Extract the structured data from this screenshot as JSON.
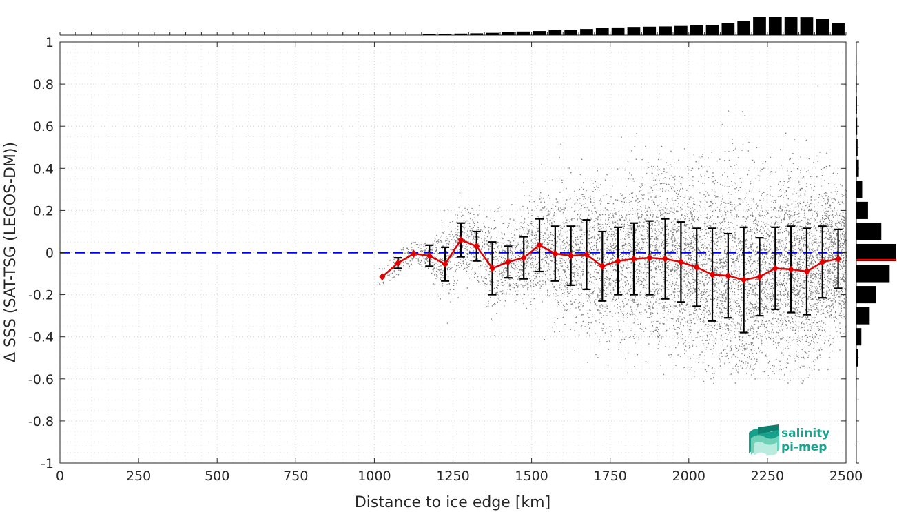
{
  "chart_data": {
    "type": "line",
    "title": "",
    "xlabel": "Distance to ice edge [km]",
    "ylabel": "Δ SSS (SAT-TSG (LEGOS-DM))",
    "xlim": [
      0,
      2500
    ],
    "ylim": [
      -1,
      1
    ],
    "xticks": [
      0,
      250,
      500,
      750,
      1000,
      1250,
      1500,
      1750,
      2000,
      2250,
      2500
    ],
    "yticks": [
      -1,
      -0.8,
      -0.6,
      -0.4,
      -0.2,
      0,
      0.2,
      0.4,
      0.6,
      0.8,
      1
    ],
    "xtick_labels": [
      "0",
      "250",
      "500",
      "750",
      "1000",
      "1250",
      "1500",
      "1750",
      "2000",
      "2250",
      "2500"
    ],
    "ytick_labels": [
      "-1",
      "-0.8",
      "-0.6",
      "-0.4",
      "-0.2",
      "0",
      "0.2",
      "0.4",
      "0.6",
      "0.8",
      "1"
    ],
    "grid": true,
    "legend": "none",
    "zero_line": {
      "y": 0,
      "color": "#0000ff",
      "style": "dashed"
    },
    "series": [
      {
        "kind": "mean_with_std",
        "color": "#e00000",
        "errorbar_color": "#000000",
        "x": [
          1025,
          1075,
          1125,
          1175,
          1225,
          1275,
          1325,
          1375,
          1425,
          1475,
          1525,
          1575,
          1625,
          1675,
          1725,
          1775,
          1825,
          1875,
          1925,
          1975,
          2025,
          2075,
          2125,
          2175,
          2225,
          2275,
          2325,
          2375,
          2425,
          2475
        ],
        "y": [
          -0.115,
          -0.05,
          -0.005,
          -0.015,
          -0.055,
          0.06,
          0.03,
          -0.075,
          -0.045,
          -0.025,
          0.035,
          -0.005,
          -0.015,
          -0.01,
          -0.065,
          -0.04,
          -0.03,
          -0.025,
          -0.03,
          -0.045,
          -0.07,
          -0.105,
          -0.11,
          -0.13,
          -0.115,
          -0.075,
          -0.08,
          -0.09,
          -0.045,
          -0.03
        ],
        "std": [
          0,
          0.025,
          0,
          0.05,
          0.08,
          0.08,
          0.07,
          0.125,
          0.075,
          0.1,
          0.125,
          0.13,
          0.14,
          0.165,
          0.165,
          0.16,
          0.17,
          0.175,
          0.19,
          0.19,
          0.185,
          0.22,
          0.2,
          0.25,
          0.185,
          0.195,
          0.205,
          0.205,
          0.17,
          0.14
        ]
      }
    ],
    "scatter_cloud": {
      "color": "#808080",
      "description_x_range": [
        1000,
        2500
      ]
    },
    "top_histogram": {
      "bin_centers": [
        1025,
        1075,
        1125,
        1175,
        1225,
        1275,
        1325,
        1375,
        1425,
        1475,
        1525,
        1575,
        1625,
        1675,
        1725,
        1775,
        1825,
        1875,
        1925,
        1975,
        2025,
        2075,
        2125,
        2175,
        2225,
        2275,
        2325,
        2375,
        2425,
        2475
      ],
      "counts": [
        0.3,
        1,
        1,
        3,
        5,
        6,
        7,
        9,
        11,
        14,
        16,
        19,
        20,
        24,
        28,
        30,
        32,
        33,
        34,
        36,
        38,
        40,
        48,
        56,
        72,
        73,
        71,
        70,
        64,
        47
      ],
      "color": "#000000"
    },
    "right_histogram": {
      "bin_centers": [
        -0.6,
        -0.5,
        -0.4,
        -0.3,
        -0.2,
        -0.1,
        0,
        0.1,
        0.2,
        0.3,
        0.4,
        0.5,
        0.6,
        0.7,
        0.8,
        0.9
      ],
      "counts": [
        0.5,
        4,
        12,
        32,
        48,
        80,
        96,
        60,
        28,
        14,
        6,
        3,
        2,
        1.5,
        1,
        0.5
      ],
      "mean_line_y": -0.035,
      "mean_line_color": "#ff0000",
      "color": "#000000"
    }
  },
  "logo": {
    "line1": "salinity",
    "line2": "pi-mep",
    "color": "#1aa391"
  }
}
